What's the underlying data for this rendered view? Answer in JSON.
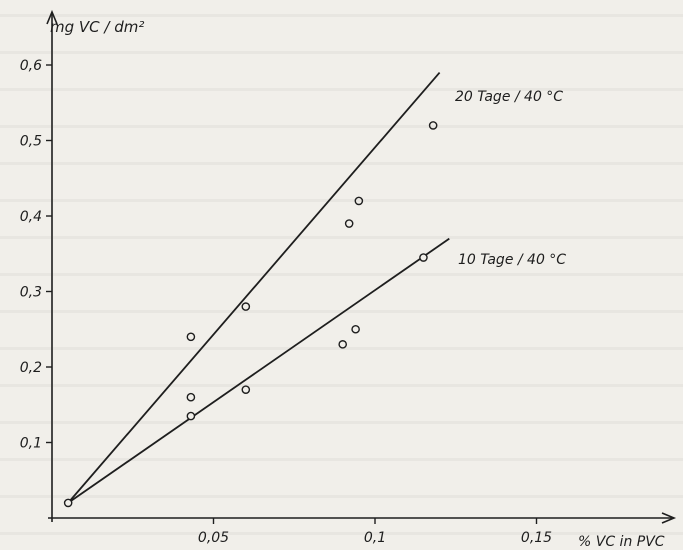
{
  "chart_data": {
    "type": "scatter",
    "title": "",
    "xlabel": "% VC in PVC",
    "ylabel": "mg VC / dm²",
    "xlim": [
      0,
      0.16
    ],
    "ylim": [
      0,
      0.65
    ],
    "x_ticks": [
      0.05,
      0.1,
      0.15
    ],
    "x_tick_labels": [
      "0,05",
      "0,1",
      "0,15"
    ],
    "y_ticks": [
      0.1,
      0.2,
      0.3,
      0.4,
      0.5,
      0.6
    ],
    "y_tick_labels": [
      "0,1",
      "0,2",
      "0,3",
      "0,4",
      "0,5",
      "0,6"
    ],
    "grid": false,
    "legend": "none",
    "series": [
      {
        "name": "20 Tage / 40 °C",
        "points": [
          [
            0.005,
            0.02
          ],
          [
            0.043,
            0.24
          ],
          [
            0.043,
            0.16
          ],
          [
            0.06,
            0.28
          ],
          [
            0.092,
            0.39
          ],
          [
            0.095,
            0.42
          ],
          [
            0.118,
            0.52
          ]
        ],
        "fit_line": [
          [
            0.005,
            0.02
          ],
          [
            0.12,
            0.59
          ]
        ]
      },
      {
        "name": "10 Tage / 40 °C",
        "points": [
          [
            0.043,
            0.135
          ],
          [
            0.06,
            0.17
          ],
          [
            0.09,
            0.23
          ],
          [
            0.094,
            0.25
          ],
          [
            0.115,
            0.345
          ]
        ],
        "fit_line": [
          [
            0.005,
            0.02
          ],
          [
            0.123,
            0.37
          ]
        ]
      }
    ],
    "colors": {
      "ink": "#1e1e1e",
      "paper": "#f1efea"
    }
  }
}
